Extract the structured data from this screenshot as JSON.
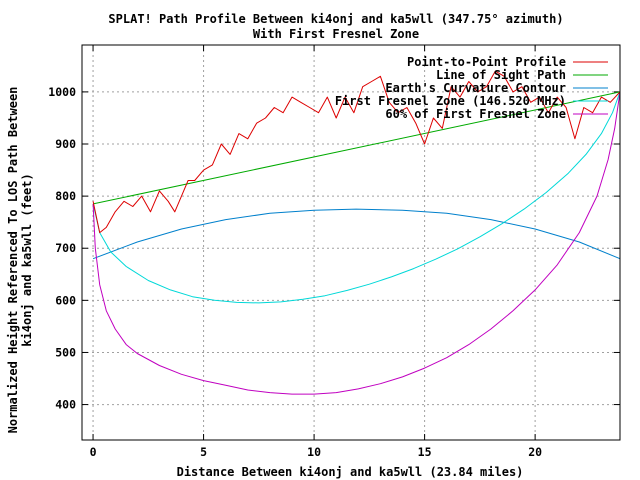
{
  "chart_data": {
    "type": "line",
    "title_line1": "SPLAT! Path Profile Between ki4onj and ka5wll (347.75° azimuth)",
    "title_line2": "With First Fresnel Zone",
    "xlabel": "Distance Between ki4onj and ka5wll (23.84 miles)",
    "ylabel_line1": "Normalized Height Referenced To LOS Path Between",
    "ylabel_line2": "ki4onj and ka5wll (feet)",
    "xlim": [
      -0.5,
      23.84
    ],
    "ylim": [
      332,
      1090
    ],
    "x_ticks": [
      0,
      5,
      10,
      15,
      20
    ],
    "y_ticks": [
      400,
      500,
      600,
      700,
      800,
      900,
      1000
    ],
    "grid": true,
    "legend_position": "top-right",
    "colors": {
      "profile": "#dd0000",
      "los": "#00aa00",
      "curvature": "#0080cc",
      "fresnel": "#00d8d8",
      "fresnel60": "#c000c0"
    },
    "series": [
      {
        "name": "Point-to-Point Profile",
        "key": "profile",
        "x": [
          0,
          0.3,
          0.6,
          1.0,
          1.4,
          1.8,
          2.2,
          2.6,
          3.0,
          3.4,
          3.7,
          4.0,
          4.3,
          4.6,
          5.0,
          5.4,
          5.8,
          6.2,
          6.6,
          7.0,
          7.4,
          7.8,
          8.2,
          8.6,
          9.0,
          9.4,
          9.8,
          10.2,
          10.6,
          11.0,
          11.4,
          11.8,
          12.2,
          12.6,
          13.0,
          13.4,
          13.8,
          14.2,
          14.6,
          15.0,
          15.4,
          15.8,
          16.2,
          16.6,
          17.0,
          17.4,
          17.8,
          18.2,
          18.6,
          19.0,
          19.4,
          19.8,
          20.2,
          20.6,
          21.0,
          21.4,
          21.8,
          22.2,
          22.6,
          23.0,
          23.4,
          23.84
        ],
        "y": [
          790,
          730,
          740,
          770,
          790,
          780,
          800,
          770,
          810,
          790,
          770,
          800,
          830,
          830,
          850,
          860,
          900,
          880,
          920,
          910,
          940,
          950,
          970,
          960,
          990,
          980,
          970,
          960,
          990,
          950,
          990,
          960,
          1010,
          1020,
          1030,
          980,
          960,
          970,
          940,
          900,
          950,
          930,
          1010,
          990,
          1020,
          1000,
          1010,
          1040,
          1030,
          1000,
          1010,
          980,
          990,
          960,
          990,
          970,
          910,
          970,
          960,
          990,
          980,
          1000
        ]
      },
      {
        "name": "Line of Sight Path",
        "key": "los",
        "x": [
          0,
          23.84
        ],
        "y": [
          785,
          1000
        ]
      },
      {
        "name": "Earth's Curvature Contour",
        "key": "curvature",
        "x": [
          0,
          2,
          4,
          6,
          8,
          10,
          11.9,
          14,
          16,
          18,
          20,
          22,
          23.84
        ],
        "y": [
          680,
          712,
          737,
          755,
          767,
          773,
          775,
          773,
          767,
          755,
          737,
          712,
          680
        ]
      },
      {
        "name": "First Fresnel Zone (146.520 MHz)",
        "key": "fresnel",
        "x": [
          0,
          0.3,
          0.8,
          1.5,
          2.5,
          3.5,
          4.5,
          5.5,
          6.5,
          7.5,
          8.5,
          9.5,
          10.5,
          11.5,
          12.5,
          13.5,
          14.5,
          15.5,
          16.5,
          17.5,
          18.5,
          19.5,
          20.5,
          21.5,
          22.3,
          23.0,
          23.5,
          23.84
        ],
        "y": [
          785,
          730,
          693,
          665,
          638,
          620,
          607,
          600,
          596,
          595,
          597,
          602,
          609,
          619,
          631,
          645,
          661,
          679,
          699,
          722,
          747,
          775,
          807,
          844,
          880,
          920,
          960,
          1000
        ]
      },
      {
        "name": "60% of First Fresnel Zone",
        "key": "fresnel60",
        "x": [
          0,
          0.1,
          0.3,
          0.6,
          1.0,
          1.5,
          2.0,
          3.0,
          4.0,
          5.0,
          6.0,
          7.0,
          8.0,
          9.0,
          10.0,
          11.0,
          12.0,
          13.0,
          14.0,
          15.0,
          16.0,
          17.0,
          18.0,
          19.0,
          20.0,
          21.0,
          22.0,
          22.8,
          23.3,
          23.6,
          23.84
        ],
        "y": [
          785,
          700,
          630,
          580,
          545,
          515,
          498,
          475,
          458,
          446,
          437,
          428,
          423,
          420,
          420,
          423,
          430,
          440,
          453,
          470,
          490,
          515,
          545,
          580,
          620,
          668,
          730,
          800,
          870,
          930,
          1000
        ]
      }
    ]
  }
}
